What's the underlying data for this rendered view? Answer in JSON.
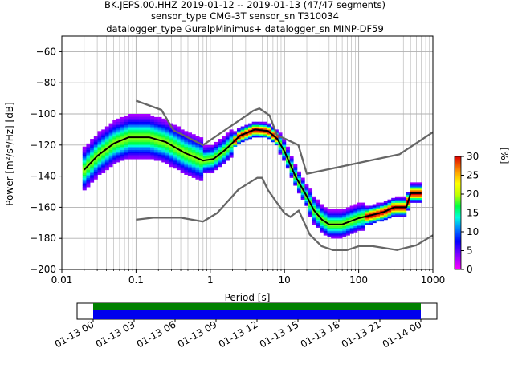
{
  "title_lines": [
    "BK.JEPS.00.HHZ   2019-01-12 -- 2019-01-13  (47/47 segments)",
    "sensor_type CMG-3T sensor_sn T310034",
    "datalogger_type GuralpMinimus+ datalogger_sn MINP-DF59"
  ],
  "chart_data": [
    {
      "type": "heatmap",
      "xlabel": "Period [s]",
      "ylabel": "Power [m²/s⁴/Hz] [dB]",
      "xscale": "log",
      "xlim": [
        0.01,
        1000
      ],
      "ylim": [
        -200,
        -50
      ],
      "grid": true,
      "x_tick_labels": [
        "0.01",
        "0.1",
        "1",
        "10",
        "100",
        "1000"
      ],
      "x_tick_values": [
        0.01,
        0.1,
        1,
        10,
        100,
        1000
      ],
      "y_tick_values": [
        -200,
        -180,
        -160,
        -140,
        -120,
        -100,
        -80,
        -60
      ],
      "y_tick_labels": [
        "−200",
        "−180",
        "−160",
        "−140",
        "−120",
        "−100",
        "−80",
        "−60"
      ],
      "colorbar": {
        "label": "[%]",
        "min": 0,
        "max": 30,
        "ticks": [
          0,
          5,
          10,
          15,
          20,
          25,
          30
        ],
        "tick_labels": [
          "0",
          "5",
          "10",
          "15",
          "20",
          "25",
          "30"
        ]
      },
      "series": [
        {
          "role": "new-high-noise-model",
          "color": "#666666",
          "points": [
            [
              0.1,
              -91.5
            ],
            [
              0.22,
              -97.4
            ],
            [
              0.32,
              -110.5
            ],
            [
              0.8,
              -120
            ],
            [
              3.8,
              -98
            ],
            [
              4.6,
              -96.5
            ],
            [
              6.3,
              -101
            ],
            [
              7.9,
              -113.5
            ],
            [
              15.4,
              -120
            ],
            [
              20,
              -138.5
            ],
            [
              354.8,
              -126
            ],
            [
              10000,
              -80
            ]
          ]
        },
        {
          "role": "new-low-noise-model",
          "color": "#666666",
          "points": [
            [
              0.1,
              -168
            ],
            [
              0.17,
              -166.7
            ],
            [
              0.4,
              -166.7
            ],
            [
              0.8,
              -169.2
            ],
            [
              1.24,
              -163.7
            ],
            [
              2.4,
              -148.6
            ],
            [
              4.3,
              -141.1
            ],
            [
              5,
              -141.1
            ],
            [
              6,
              -149
            ],
            [
              10,
              -163.8
            ],
            [
              12,
              -166.2
            ],
            [
              15.6,
              -162.1
            ],
            [
              21.9,
              -177.5
            ],
            [
              31.6,
              -185
            ],
            [
              45,
              -187.5
            ],
            [
              70,
              -187.5
            ],
            [
              101,
              -185
            ],
            [
              154,
              -185
            ],
            [
              328,
              -187.5
            ],
            [
              600,
              -184.4
            ],
            [
              1000,
              -178
            ]
          ]
        },
        {
          "role": "mode-psd",
          "color": "#000000",
          "points": [
            [
              0.02,
              -136
            ],
            [
              0.03,
              -127
            ],
            [
              0.05,
              -119
            ],
            [
              0.08,
              -115
            ],
            [
              0.15,
              -115
            ],
            [
              0.25,
              -118
            ],
            [
              0.45,
              -125
            ],
            [
              0.8,
              -130
            ],
            [
              1.1,
              -129
            ],
            [
              1.6,
              -123
            ],
            [
              2.5,
              -114
            ],
            [
              4,
              -110
            ],
            [
              6,
              -111
            ],
            [
              8,
              -116
            ],
            [
              10,
              -124
            ],
            [
              14,
              -140
            ],
            [
              20,
              -153
            ],
            [
              25,
              -162
            ],
            [
              32,
              -168
            ],
            [
              40,
              -171
            ],
            [
              60,
              -171
            ],
            [
              100,
              -167
            ],
            [
              150,
              -165
            ],
            [
              220,
              -163
            ],
            [
              300,
              -160
            ],
            [
              440,
              -160
            ],
            [
              500,
              -151
            ],
            [
              700,
              -151
            ]
          ]
        }
      ]
    },
    {
      "type": "timeline",
      "x_tick_labels": [
        "01-13 00",
        "01-13 03",
        "01-13 06",
        "01-13 09",
        "01-13 12",
        "01-13 15",
        "01-13 18",
        "01-13 21",
        "01-14 00"
      ],
      "bars": [
        {
          "role": "data-availability",
          "color": "#0000ee",
          "start": "01-13 00",
          "end": "01-14 00"
        },
        {
          "role": "processed-segments",
          "color": "#008000",
          "start": "01-13 00",
          "end": "01-14 00"
        }
      ]
    }
  ]
}
